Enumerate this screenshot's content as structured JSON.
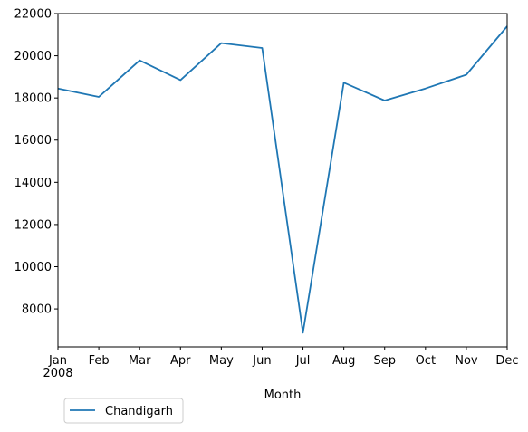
{
  "chart_data": {
    "type": "line",
    "x": [
      "Jan",
      "Feb",
      "Mar",
      "Apr",
      "May",
      "Jun",
      "Jul",
      "Aug",
      "Sep",
      "Oct",
      "Nov",
      "Dec"
    ],
    "x_year_label": "2008",
    "xlabel": "Month",
    "ylabel": "",
    "title": "",
    "ylim": [
      6200,
      22000
    ],
    "yticks": [
      8000,
      10000,
      12000,
      14000,
      16000,
      18000,
      20000,
      22000
    ],
    "series": [
      {
        "name": "Chandigarh",
        "color": "#1f77b4",
        "values": [
          18450,
          18050,
          19780,
          18850,
          20600,
          20370,
          6870,
          18730,
          17880,
          18450,
          19100,
          21400
        ]
      }
    ],
    "grid": false,
    "legend_position": "below-left"
  }
}
